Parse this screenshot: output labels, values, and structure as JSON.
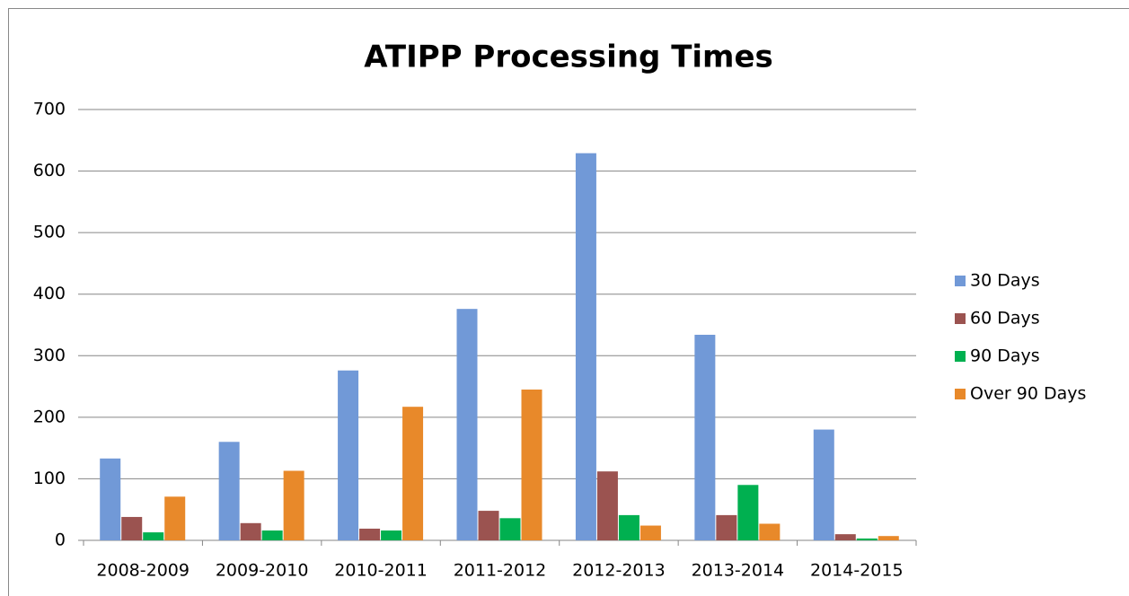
{
  "chart_data": {
    "type": "bar",
    "title": "ATIPP Processing Times",
    "categories": [
      "2008-2009",
      "2009-2010",
      "2010-2011",
      "2011-2012",
      "2012-2013",
      "2013-2014",
      "2014-2015"
    ],
    "series": [
      {
        "name": "30 Days",
        "color": "#7199d7",
        "values": [
          133,
          160,
          276,
          376,
          629,
          334,
          180
        ]
      },
      {
        "name": "60 Days",
        "color": "#9b5350",
        "values": [
          38,
          28,
          19,
          48,
          112,
          41,
          10
        ]
      },
      {
        "name": "90 Days",
        "color": "#00b050",
        "values": [
          13,
          16,
          16,
          36,
          41,
          90,
          3
        ]
      },
      {
        "name": "Over 90 Days",
        "color": "#e8892a",
        "values": [
          71,
          113,
          217,
          245,
          24,
          27,
          7
        ]
      }
    ],
    "ylim": [
      0,
      700
    ],
    "yticks": [
      0,
      100,
      200,
      300,
      400,
      500,
      600,
      700
    ],
    "grid": true,
    "legend": "right"
  }
}
